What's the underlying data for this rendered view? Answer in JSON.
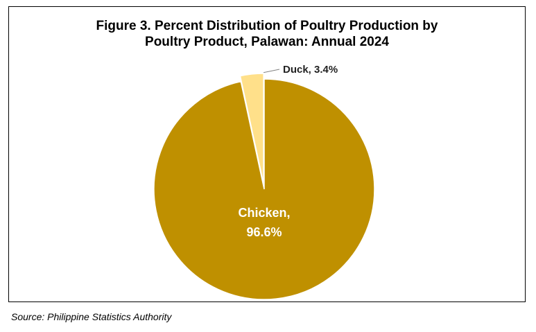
{
  "chart_data": {
    "type": "pie",
    "title_line1": "Figure 3. Percent Distribution of Poultry Production by",
    "title_line2": "Poultry Product, Palawan: Annual 2024",
    "slices": [
      {
        "label": "Duck",
        "value": 3.4,
        "label_text": "Duck, 3.4%",
        "color": "#FFE08A"
      },
      {
        "label": "Chicken",
        "value": 96.6,
        "label_line1": "Chicken,",
        "label_line2": "96.6%",
        "color": "#BF9000"
      }
    ],
    "legend": "none"
  },
  "source": "Source: Philippine Statistics Authority"
}
